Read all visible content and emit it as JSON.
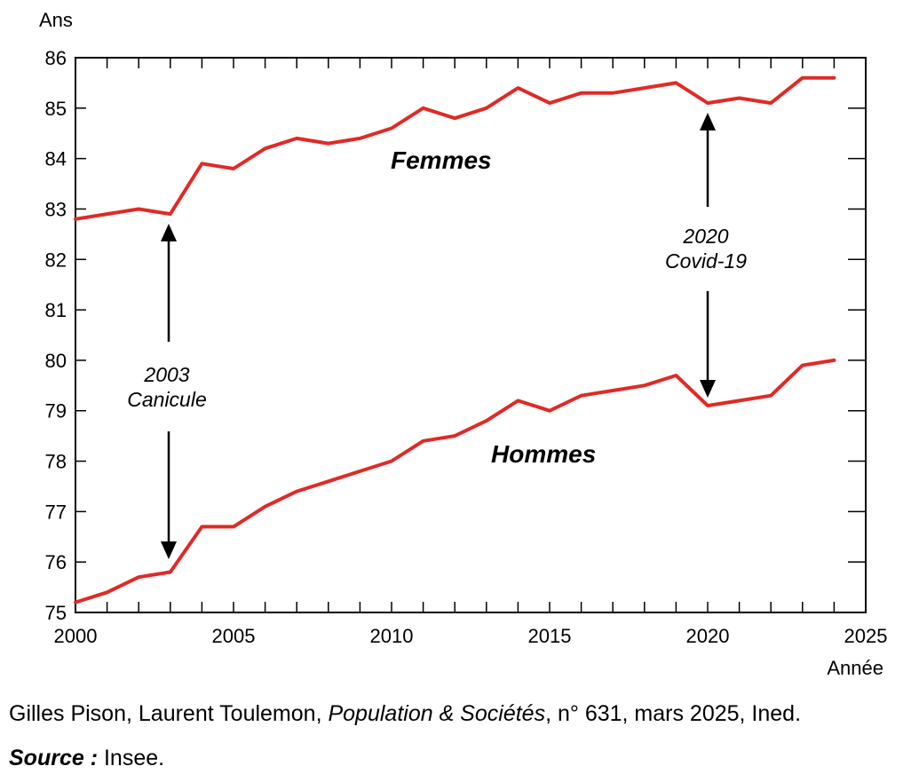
{
  "chart_data": {
    "type": "line",
    "ylabel": "Ans",
    "xlabel": "Année",
    "xlim": [
      2000,
      2025
    ],
    "ylim": [
      75,
      86
    ],
    "xticks": [
      2000,
      2005,
      2010,
      2015,
      2020,
      2025
    ],
    "yticks": [
      75,
      76,
      77,
      78,
      79,
      80,
      81,
      82,
      83,
      84,
      85,
      86
    ],
    "grid": false,
    "series": [
      {
        "name": "Femmes",
        "color": "#e02a26",
        "x": [
          2000,
          2001,
          2002,
          2003,
          2004,
          2005,
          2006,
          2007,
          2008,
          2009,
          2010,
          2011,
          2012,
          2013,
          2014,
          2015,
          2016,
          2017,
          2018,
          2019,
          2020,
          2021,
          2022,
          2023,
          2024
        ],
        "y": [
          82.8,
          82.9,
          83.0,
          82.9,
          83.9,
          83.8,
          84.2,
          84.4,
          84.3,
          84.4,
          84.6,
          85.0,
          84.8,
          85.0,
          85.4,
          85.1,
          85.3,
          85.3,
          85.4,
          85.5,
          85.1,
          85.2,
          85.1,
          85.6,
          85.6
        ]
      },
      {
        "name": "Hommes",
        "color": "#e02a26",
        "x": [
          2000,
          2001,
          2002,
          2003,
          2004,
          2005,
          2006,
          2007,
          2008,
          2009,
          2010,
          2011,
          2012,
          2013,
          2014,
          2015,
          2016,
          2017,
          2018,
          2019,
          2020,
          2021,
          2022,
          2023,
          2024
        ],
        "y": [
          75.2,
          75.4,
          75.7,
          75.8,
          76.7,
          76.7,
          77.1,
          77.4,
          77.6,
          77.8,
          78.0,
          78.4,
          78.5,
          78.8,
          79.2,
          79.0,
          79.3,
          79.4,
          79.5,
          79.7,
          79.1,
          79.2,
          79.3,
          79.9,
          80.0
        ]
      }
    ],
    "annotations": [
      {
        "id": "canicule",
        "lines": [
          "2003",
          "Canicule"
        ],
        "x": 2003
      },
      {
        "id": "covid",
        "lines": [
          "2020",
          "Covid-19"
        ],
        "x": 2020
      }
    ]
  },
  "footer": {
    "credit_authors": "Gilles Pison, Laurent Toulemon, ",
    "credit_journal": "Population & Sociétés",
    "credit_rest": ", n° 631, mars 2025, Ined.",
    "source_label": "Source :",
    "source_value": " Insee."
  }
}
